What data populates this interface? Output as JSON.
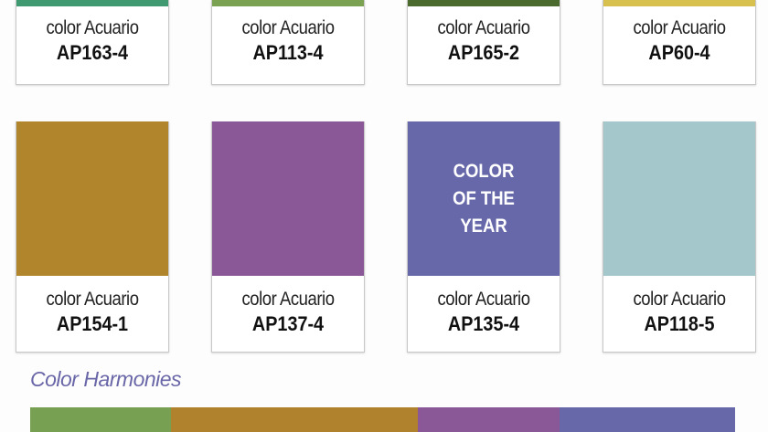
{
  "rows": [
    [
      {
        "brand": "color Acuario",
        "code": "AP163-4",
        "color": "#3f9a72"
      },
      {
        "brand": "color Acuario",
        "code": "AP113-4",
        "color": "#7ba252"
      },
      {
        "brand": "color Acuario",
        "code": "AP165-2",
        "color": "#4a6a2e"
      },
      {
        "brand": "color Acuario",
        "code": "AP60-4",
        "color": "#d8c04e"
      }
    ],
    [
      {
        "brand": "color Acuario",
        "code": "AP154-1",
        "color": "#b0852c"
      },
      {
        "brand": "color Acuario",
        "code": "AP137-4",
        "color": "#8a5797"
      },
      {
        "brand": "color Acuario",
        "code": "AP135-4",
        "color": "#6768aa",
        "badge": "COLOR OF THE YEAR"
      },
      {
        "brand": "color Acuario",
        "code": "AP118-5",
        "color": "#a4c7cb"
      }
    ]
  ],
  "harmonies": {
    "title": "Color Harmonies",
    "colors": [
      "#77a052",
      "#b0822e",
      "#8a5797",
      "#6768aa"
    ]
  }
}
